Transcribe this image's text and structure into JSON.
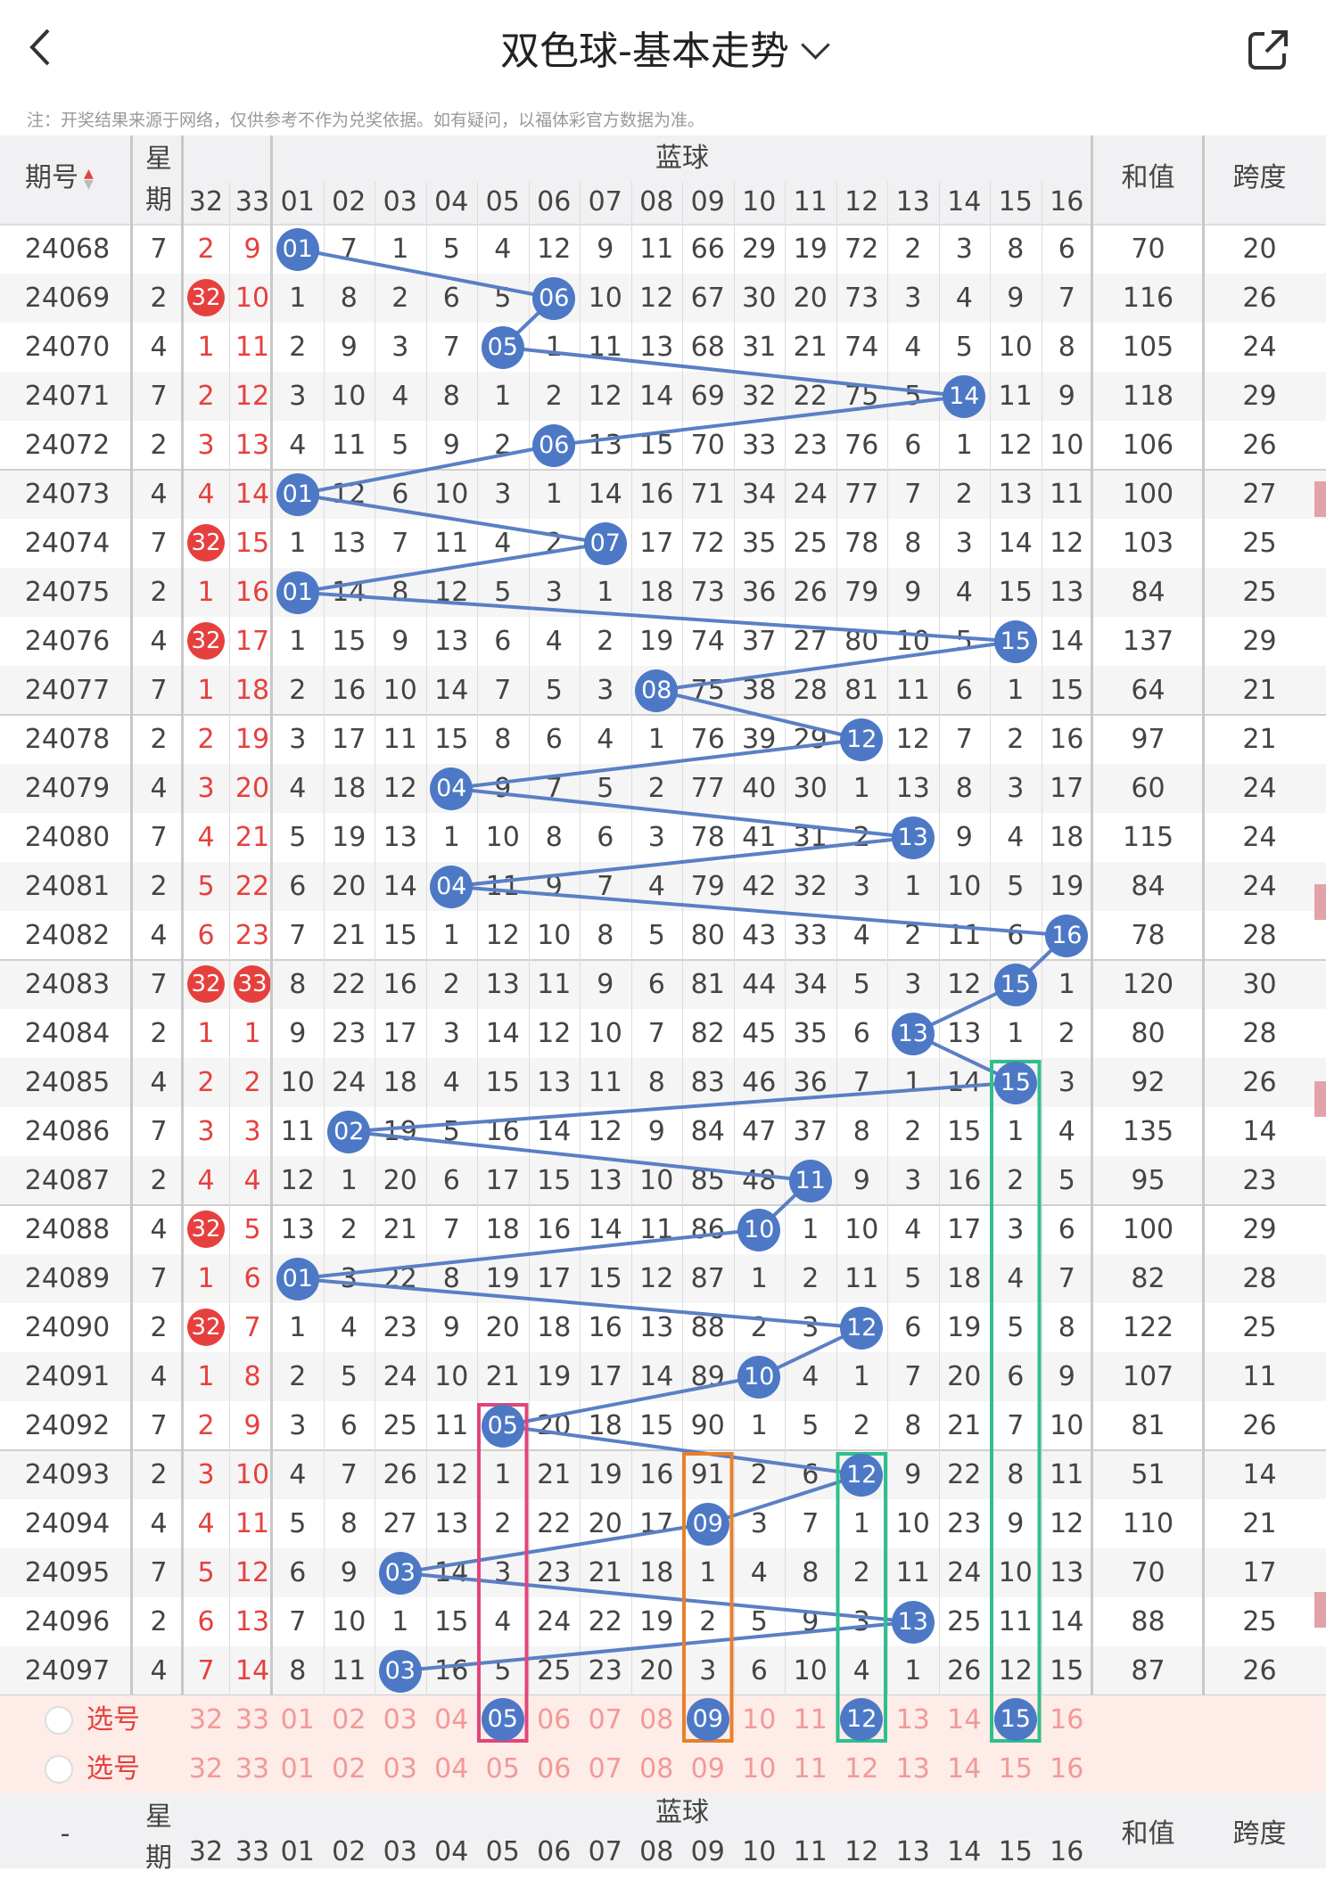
{
  "header": {
    "back_icon": "back-chevron-icon",
    "title": "双色球-基本走势",
    "dropdown_icon": "chevron-down-icon",
    "share_icon": "share-icon"
  },
  "note": "注：开奖结果来源于网络，仅供参考不作为兑奖依据。如有疑问，以福体彩官方数据为准。",
  "table": {
    "issue_header": "期号",
    "week_header": "星期",
    "red_cols": [
      "32",
      "33"
    ],
    "blue_header": "蓝球",
    "blue_cols": [
      "01",
      "02",
      "03",
      "04",
      "05",
      "06",
      "07",
      "08",
      "09",
      "10",
      "11",
      "12",
      "13",
      "14",
      "15",
      "16"
    ],
    "sum_header": "和值",
    "span_header": "跨度",
    "rows": [
      {
        "issue": "24068",
        "week": "7",
        "r32": "2",
        "r33": "9",
        "blue": [
          "01",
          "7",
          "1",
          "5",
          "4",
          "12",
          "9",
          "11",
          "66",
          "29",
          "19",
          "72",
          "2",
          "3",
          "8",
          "6"
        ],
        "hit": 1,
        "sum": "70",
        "span": "20"
      },
      {
        "issue": "24069",
        "week": "2",
        "r32": "32",
        "r33": "10",
        "blue": [
          "1",
          "8",
          "2",
          "6",
          "5",
          "06",
          "10",
          "12",
          "67",
          "30",
          "20",
          "73",
          "3",
          "4",
          "9",
          "7"
        ],
        "hit": 6,
        "sum": "116",
        "span": "26"
      },
      {
        "issue": "24070",
        "week": "4",
        "r32": "1",
        "r33": "11",
        "blue": [
          "2",
          "9",
          "3",
          "7",
          "05",
          "1",
          "11",
          "13",
          "68",
          "31",
          "21",
          "74",
          "4",
          "5",
          "10",
          "8"
        ],
        "hit": 5,
        "sum": "105",
        "span": "24"
      },
      {
        "issue": "24071",
        "week": "7",
        "r32": "2",
        "r33": "12",
        "blue": [
          "3",
          "10",
          "4",
          "8",
          "1",
          "2",
          "12",
          "14",
          "69",
          "32",
          "22",
          "75",
          "5",
          "14",
          "11",
          "9"
        ],
        "hit": 14,
        "sum": "118",
        "span": "29"
      },
      {
        "issue": "24072",
        "week": "2",
        "r32": "3",
        "r33": "13",
        "blue": [
          "4",
          "11",
          "5",
          "9",
          "2",
          "06",
          "13",
          "15",
          "70",
          "33",
          "23",
          "76",
          "6",
          "1",
          "12",
          "10"
        ],
        "hit": 6,
        "sum": "106",
        "span": "26"
      },
      {
        "issue": "24073",
        "week": "4",
        "r32": "4",
        "r33": "14",
        "blue": [
          "01",
          "12",
          "6",
          "10",
          "3",
          "1",
          "14",
          "16",
          "71",
          "34",
          "24",
          "77",
          "7",
          "2",
          "13",
          "11"
        ],
        "hit": 1,
        "sum": "100",
        "span": "27"
      },
      {
        "issue": "24074",
        "week": "7",
        "r32": "32",
        "r33": "15",
        "blue": [
          "1",
          "13",
          "7",
          "11",
          "4",
          "2",
          "07",
          "17",
          "72",
          "35",
          "25",
          "78",
          "8",
          "3",
          "14",
          "12"
        ],
        "hit": 7,
        "sum": "103",
        "span": "25"
      },
      {
        "issue": "24075",
        "week": "2",
        "r32": "1",
        "r33": "16",
        "blue": [
          "01",
          "14",
          "8",
          "12",
          "5",
          "3",
          "1",
          "18",
          "73",
          "36",
          "26",
          "79",
          "9",
          "4",
          "15",
          "13"
        ],
        "hit": 1,
        "sum": "84",
        "span": "25"
      },
      {
        "issue": "24076",
        "week": "4",
        "r32": "32",
        "r33": "17",
        "blue": [
          "1",
          "15",
          "9",
          "13",
          "6",
          "4",
          "2",
          "19",
          "74",
          "37",
          "27",
          "80",
          "10",
          "5",
          "15",
          "14"
        ],
        "hit": 15,
        "sum": "137",
        "span": "29"
      },
      {
        "issue": "24077",
        "week": "7",
        "r32": "1",
        "r33": "18",
        "blue": [
          "2",
          "16",
          "10",
          "14",
          "7",
          "5",
          "3",
          "08",
          "75",
          "38",
          "28",
          "81",
          "11",
          "6",
          "1",
          "15"
        ],
        "hit": 8,
        "sum": "64",
        "span": "21"
      },
      {
        "issue": "24078",
        "week": "2",
        "r32": "2",
        "r33": "19",
        "blue": [
          "3",
          "17",
          "11",
          "15",
          "8",
          "6",
          "4",
          "1",
          "76",
          "39",
          "29",
          "12",
          "12",
          "7",
          "2",
          "16"
        ],
        "hit": 12,
        "sum": "97",
        "span": "21"
      },
      {
        "issue": "24079",
        "week": "4",
        "r32": "3",
        "r33": "20",
        "blue": [
          "4",
          "18",
          "12",
          "04",
          "9",
          "7",
          "5",
          "2",
          "77",
          "40",
          "30",
          "1",
          "13",
          "8",
          "3",
          "17"
        ],
        "hit": 4,
        "sum": "60",
        "span": "24"
      },
      {
        "issue": "24080",
        "week": "7",
        "r32": "4",
        "r33": "21",
        "blue": [
          "5",
          "19",
          "13",
          "1",
          "10",
          "8",
          "6",
          "3",
          "78",
          "41",
          "31",
          "2",
          "13",
          "9",
          "4",
          "18"
        ],
        "hit": 13,
        "sum": "115",
        "span": "24"
      },
      {
        "issue": "24081",
        "week": "2",
        "r32": "5",
        "r33": "22",
        "blue": [
          "6",
          "20",
          "14",
          "04",
          "11",
          "9",
          "7",
          "4",
          "79",
          "42",
          "32",
          "3",
          "1",
          "10",
          "5",
          "19"
        ],
        "hit": 4,
        "sum": "84",
        "span": "24"
      },
      {
        "issue": "24082",
        "week": "4",
        "r32": "6",
        "r33": "23",
        "blue": [
          "7",
          "21",
          "15",
          "1",
          "12",
          "10",
          "8",
          "5",
          "80",
          "43",
          "33",
          "4",
          "2",
          "11",
          "6",
          "16"
        ],
        "hit": 16,
        "sum": "78",
        "span": "28"
      },
      {
        "issue": "24083",
        "week": "7",
        "r32": "32",
        "r33": "33",
        "blue": [
          "8",
          "22",
          "16",
          "2",
          "13",
          "11",
          "9",
          "6",
          "81",
          "44",
          "34",
          "5",
          "3",
          "12",
          "15",
          "1"
        ],
        "hit": 15,
        "sum": "120",
        "span": "30"
      },
      {
        "issue": "24084",
        "week": "2",
        "r32": "1",
        "r33": "1",
        "blue": [
          "9",
          "23",
          "17",
          "3",
          "14",
          "12",
          "10",
          "7",
          "82",
          "45",
          "35",
          "6",
          "13",
          "13",
          "1",
          "2"
        ],
        "hit": 13,
        "sum": "80",
        "span": "28"
      },
      {
        "issue": "24085",
        "week": "4",
        "r32": "2",
        "r33": "2",
        "blue": [
          "10",
          "24",
          "18",
          "4",
          "15",
          "13",
          "11",
          "8",
          "83",
          "46",
          "36",
          "7",
          "1",
          "14",
          "15",
          "3"
        ],
        "hit": 15,
        "sum": "92",
        "span": "26"
      },
      {
        "issue": "24086",
        "week": "7",
        "r32": "3",
        "r33": "3",
        "blue": [
          "11",
          "02",
          "19",
          "5",
          "16",
          "14",
          "12",
          "9",
          "84",
          "47",
          "37",
          "8",
          "2",
          "15",
          "1",
          "4"
        ],
        "hit": 2,
        "sum": "135",
        "span": "14"
      },
      {
        "issue": "24087",
        "week": "2",
        "r32": "4",
        "r33": "4",
        "blue": [
          "12",
          "1",
          "20",
          "6",
          "17",
          "15",
          "13",
          "10",
          "85",
          "48",
          "11",
          "9",
          "3",
          "16",
          "2",
          "5"
        ],
        "hit": 11,
        "sum": "95",
        "span": "23"
      },
      {
        "issue": "24088",
        "week": "4",
        "r32": "32",
        "r33": "5",
        "blue": [
          "13",
          "2",
          "21",
          "7",
          "18",
          "16",
          "14",
          "11",
          "86",
          "10",
          "1",
          "10",
          "4",
          "17",
          "3",
          "6"
        ],
        "hit": 10,
        "sum": "100",
        "span": "29"
      },
      {
        "issue": "24089",
        "week": "7",
        "r32": "1",
        "r33": "6",
        "blue": [
          "01",
          "3",
          "22",
          "8",
          "19",
          "17",
          "15",
          "12",
          "87",
          "1",
          "2",
          "11",
          "5",
          "18",
          "4",
          "7"
        ],
        "hit": 1,
        "sum": "82",
        "span": "28"
      },
      {
        "issue": "24090",
        "week": "2",
        "r32": "32",
        "r33": "7",
        "blue": [
          "1",
          "4",
          "23",
          "9",
          "20",
          "18",
          "16",
          "13",
          "88",
          "2",
          "3",
          "12",
          "6",
          "19",
          "5",
          "8"
        ],
        "hit": 12,
        "sum": "122",
        "span": "25"
      },
      {
        "issue": "24091",
        "week": "4",
        "r32": "1",
        "r33": "8",
        "blue": [
          "2",
          "5",
          "24",
          "10",
          "21",
          "19",
          "17",
          "14",
          "89",
          "10",
          "4",
          "1",
          "7",
          "20",
          "6",
          "9"
        ],
        "hit": 10,
        "sum": "107",
        "span": "11"
      },
      {
        "issue": "24092",
        "week": "7",
        "r32": "2",
        "r33": "9",
        "blue": [
          "3",
          "6",
          "25",
          "11",
          "05",
          "20",
          "18",
          "15",
          "90",
          "1",
          "5",
          "2",
          "8",
          "21",
          "7",
          "10"
        ],
        "hit": 5,
        "sum": "81",
        "span": "26"
      },
      {
        "issue": "24093",
        "week": "2",
        "r32": "3",
        "r33": "10",
        "blue": [
          "4",
          "7",
          "26",
          "12",
          "1",
          "21",
          "19",
          "16",
          "91",
          "2",
          "6",
          "12",
          "9",
          "22",
          "8",
          "11"
        ],
        "hit": 12,
        "sum": "51",
        "span": "14"
      },
      {
        "issue": "24094",
        "week": "4",
        "r32": "4",
        "r33": "11",
        "blue": [
          "5",
          "8",
          "27",
          "13",
          "2",
          "22",
          "20",
          "17",
          "09",
          "3",
          "7",
          "1",
          "10",
          "23",
          "9",
          "12"
        ],
        "hit": 9,
        "sum": "110",
        "span": "21"
      },
      {
        "issue": "24095",
        "week": "7",
        "r32": "5",
        "r33": "12",
        "blue": [
          "6",
          "9",
          "03",
          "14",
          "3",
          "23",
          "21",
          "18",
          "1",
          "4",
          "8",
          "2",
          "11",
          "24",
          "10",
          "13"
        ],
        "hit": 3,
        "sum": "70",
        "span": "17"
      },
      {
        "issue": "24096",
        "week": "2",
        "r32": "6",
        "r33": "13",
        "blue": [
          "7",
          "10",
          "1",
          "15",
          "4",
          "24",
          "22",
          "19",
          "2",
          "5",
          "9",
          "3",
          "13",
          "25",
          "11",
          "14"
        ],
        "hit": 13,
        "sum": "88",
        "span": "25"
      },
      {
        "issue": "24097",
        "week": "4",
        "r32": "7",
        "r33": "14",
        "blue": [
          "8",
          "11",
          "03",
          "16",
          "5",
          "25",
          "23",
          "20",
          "3",
          "6",
          "10",
          "4",
          "1",
          "26",
          "12",
          "15"
        ],
        "hit": 3,
        "sum": "87",
        "span": "26"
      }
    ],
    "select_label": "选号",
    "selected_balls": [
      5,
      9,
      12,
      15
    ],
    "footer_dash": "-"
  },
  "colors": {
    "blue_ball": "#4d78c6",
    "red_ball": "#e6403e",
    "highlight_pink": "#e0457b",
    "highlight_orange": "#e8802a",
    "highlight_green": "#2fbf8c"
  }
}
